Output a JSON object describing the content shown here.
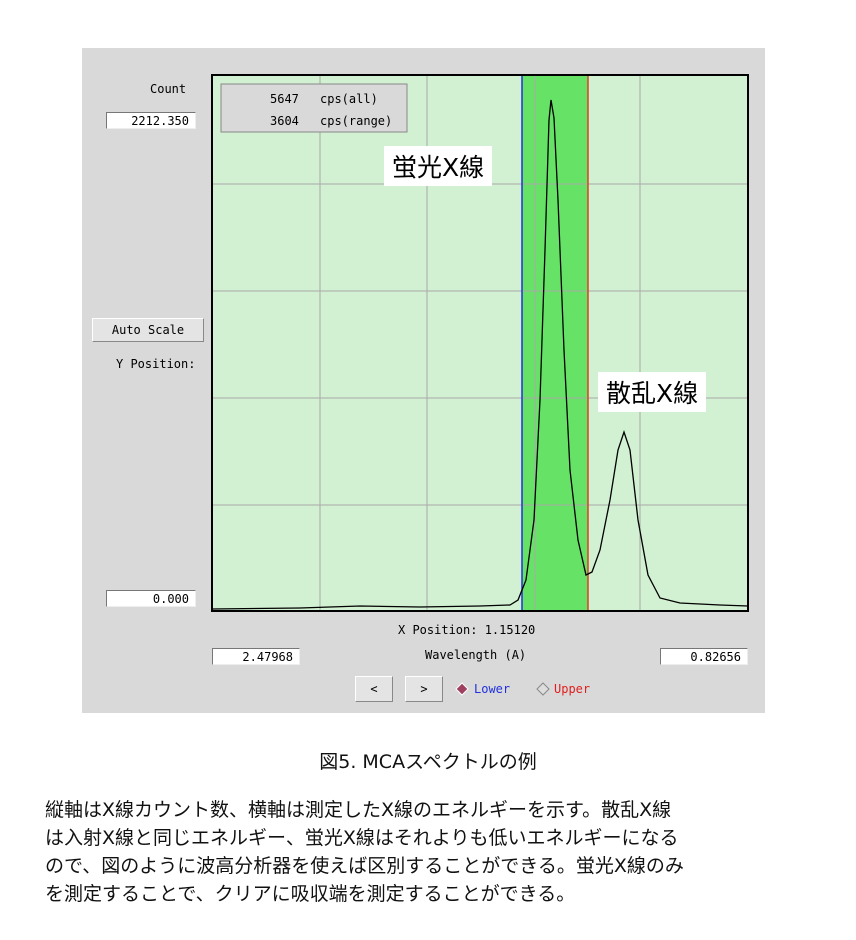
{
  "window": {
    "count_label": "Count",
    "count_max": "2212.350",
    "count_min": "0.000",
    "stats": [
      {
        "value": "5647",
        "unit": "cps(all)"
      },
      {
        "value": "3604",
        "unit": "cps(range)"
      }
    ],
    "annotations": [
      "蛍光X線",
      "散乱X線"
    ],
    "auto_scale": "Auto Scale",
    "y_position": "Y Position:",
    "x_position": "X Position: 1.15120",
    "x_min": "2.47968",
    "x_label": "Wavelength (A)",
    "x_max": "0.82656",
    "prev": "<",
    "next": ">",
    "lower": "Lower",
    "upper": "Upper"
  },
  "caption": "図5. MCAスペクトルの例",
  "body": [
    "縦軸はX線カウント数、横軸は測定したX線のエネルギーを示す。散乱X線",
    "は入射X線と同じエネルギー、蛍光X線はそれよりも低いエネルギーになる",
    "ので、図のように波高分析器を使えば区別することができる。蛍光X線のみ",
    "を測定することで、クリアに吸収端を測定することができる。"
  ]
}
